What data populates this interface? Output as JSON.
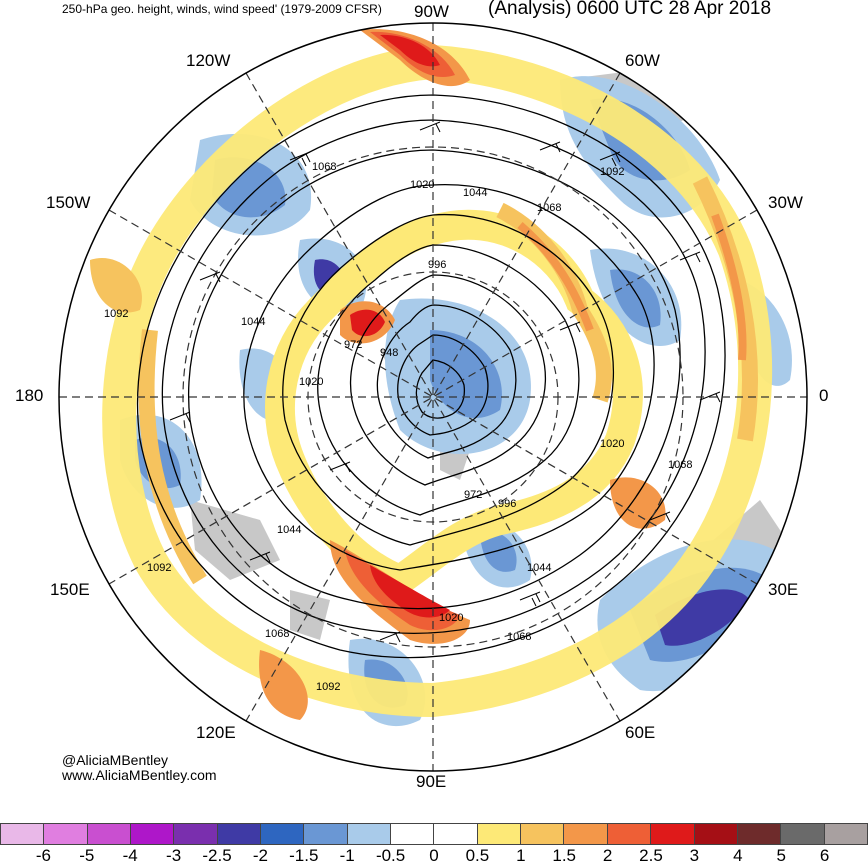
{
  "header": {
    "left_title": "250-hPa geo. height, winds, wind speed' (1979-2009 CFSR)",
    "right_title": "(Analysis) 0600 UTC 28 Apr 2018"
  },
  "longitude_labels": {
    "n": "90W",
    "s": "90E",
    "w": "180",
    "e": "0",
    "nw": "120W",
    "ne": "60W",
    "wnw": "150W",
    "ene": "30W",
    "wsw": "150E",
    "ese": "30E",
    "sw": "120E",
    "se": "60E"
  },
  "contour_labels": [
    "1068",
    "1020",
    "1044",
    "1068",
    "1092",
    "996",
    "972",
    "948",
    "1044",
    "1092",
    "1020",
    "1020",
    "1068",
    "972",
    "996",
    "1044",
    "1044",
    "1092",
    "1068",
    "1020",
    "1068",
    "1092"
  ],
  "credits": {
    "line1": "@AliciaMBentley",
    "line2": "www.AliciaMBentley.com"
  },
  "colorbar": {
    "colors": [
      "#e9b8e8",
      "#e07ee0",
      "#c94fd0",
      "#ae17c9",
      "#7a2fae",
      "#3f3aa5",
      "#2e66c0",
      "#6a97d4",
      "#a9cbea",
      "#ffffff",
      "#ffffff",
      "#fde977",
      "#f6c35e",
      "#f39749",
      "#ee5f36",
      "#df1a1a",
      "#a50f15",
      "#6e2b2b",
      "#6a6a6a",
      "#a8a0a0"
    ],
    "ticks": [
      "-6",
      "-5",
      "-4",
      "-3",
      "-2.5",
      "-2",
      "-1.5",
      "-1",
      "-0.5",
      "0",
      "0.5",
      "1",
      "1.5",
      "2",
      "2.5",
      "3",
      "4",
      "5",
      "6"
    ]
  }
}
